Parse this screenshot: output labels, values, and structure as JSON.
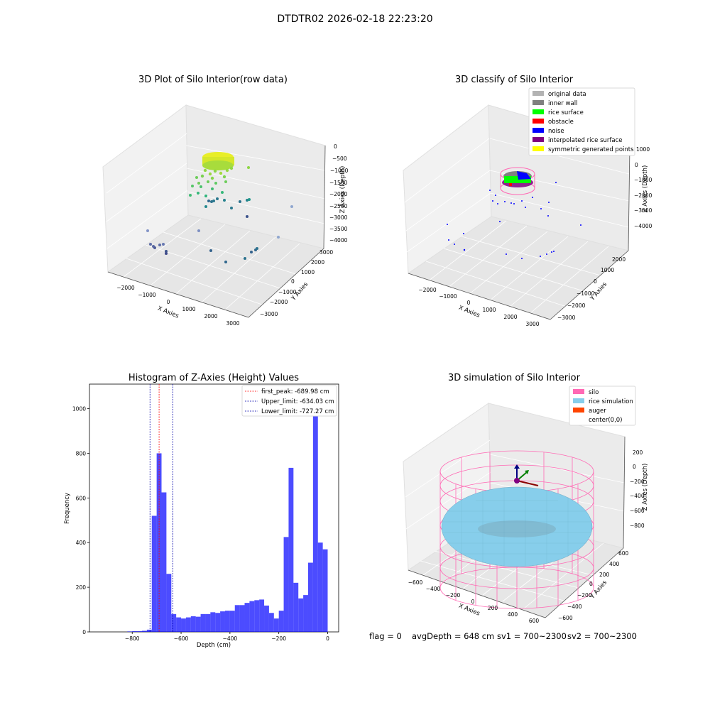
{
  "figure": {
    "suptitle": "DTDTR02 2026-02-18 22:23:20",
    "footer": {
      "flag": "flag = 0",
      "avg_depth": "avgDepth = 648 cm",
      "sv1": "sv1 = 700~2300",
      "sv2": "sv2 = 700~2300"
    }
  },
  "panels": {
    "raw": {
      "title": "3D Plot of Silo Interior(row data)",
      "xlabel": "X Axies",
      "ylabel": "Y Axies",
      "zlabel": "Z Axies (Depth)",
      "xticks": [
        "−2000",
        "−1000",
        "0",
        "1000",
        "2000",
        "3000"
      ],
      "yticks": [
        "3000",
        "2000",
        "1000",
        "0",
        "−1000",
        "−2000",
        "−3000"
      ],
      "zticks": [
        "0",
        "−500",
        "−1000",
        "−1500",
        "−2000",
        "−2500",
        "−3000",
        "−3500",
        "−4000"
      ]
    },
    "classify": {
      "title": "3D classify of Silo Interior",
      "xlabel": "X Axies",
      "ylabel": "Y Axies",
      "zlabel": "Z Axies (Depth)",
      "xticks": [
        "−2000",
        "−1000",
        "0",
        "1000",
        "2000",
        "3000"
      ],
      "yticks": [
        "2000",
        "1000",
        "0",
        "−1000",
        "−2000",
        "−3000"
      ],
      "zticks": [
        "1000",
        "0",
        "−1000",
        "−2000",
        "−3000",
        "−4000"
      ],
      "legend": [
        {
          "label": "original data",
          "color": "#b3b3b3"
        },
        {
          "label": "inner wall",
          "color": "#808080"
        },
        {
          "label": "rice surface",
          "color": "#00ff00"
        },
        {
          "label": "obstacle",
          "color": "#ff0000"
        },
        {
          "label": "noise",
          "color": "#0000ff"
        },
        {
          "label": "interpolated rice surface",
          "color": "#800080"
        },
        {
          "label": "symmetric generated points",
          "color": "#ffff00"
        }
      ]
    },
    "simulation": {
      "title": "3D simulation of Silo Interior",
      "xlabel": "X Axies",
      "ylabel": "Y Axies",
      "zlabel": "Z Axies (Depth)",
      "xticks": [
        "−600",
        "−400",
        "−200",
        "0",
        "200",
        "400",
        "600"
      ],
      "yticks": [
        "600",
        "400",
        "200",
        "0",
        "−200",
        "−400",
        "−600"
      ],
      "zticks": [
        "200",
        "0",
        "−200",
        "−400",
        "−600",
        "−800"
      ],
      "legend": [
        {
          "label": "silo",
          "color": "#ff69b4"
        },
        {
          "label": "rice simulation",
          "color": "#87ceeb"
        },
        {
          "label": "auger",
          "color": "#ff4500"
        },
        {
          "label": "center(0,0)",
          "color": ""
        }
      ]
    }
  },
  "chart_data": {
    "type": "bar",
    "title": "Histogram of Z-Axies (Height) Values",
    "xlabel": "Depth (cm)",
    "ylabel": "Frequency",
    "xlim": [
      -975,
      45
    ],
    "ylim": [
      0,
      1110
    ],
    "xticks": [
      -800,
      -600,
      -400,
      -200,
      0
    ],
    "yticks": [
      0,
      200,
      400,
      600,
      800,
      1000
    ],
    "bar_color": "#0000ff",
    "bin_width": 20,
    "bins": [
      {
        "x0": -820,
        "v": 2
      },
      {
        "x0": -800,
        "v": 3
      },
      {
        "x0": -780,
        "v": 3
      },
      {
        "x0": -760,
        "v": 5
      },
      {
        "x0": -740,
        "v": 10
      },
      {
        "x0": -720,
        "v": 520
      },
      {
        "x0": -700,
        "v": 800
      },
      {
        "x0": -680,
        "v": 625
      },
      {
        "x0": -660,
        "v": 260
      },
      {
        "x0": -640,
        "v": 80
      },
      {
        "x0": -620,
        "v": 65
      },
      {
        "x0": -600,
        "v": 60
      },
      {
        "x0": -580,
        "v": 65
      },
      {
        "x0": -560,
        "v": 70
      },
      {
        "x0": -540,
        "v": 68
      },
      {
        "x0": -520,
        "v": 80
      },
      {
        "x0": -500,
        "v": 80
      },
      {
        "x0": -480,
        "v": 88
      },
      {
        "x0": -460,
        "v": 85
      },
      {
        "x0": -440,
        "v": 92
      },
      {
        "x0": -420,
        "v": 95
      },
      {
        "x0": -400,
        "v": 95
      },
      {
        "x0": -380,
        "v": 120
      },
      {
        "x0": -360,
        "v": 120
      },
      {
        "x0": -340,
        "v": 130
      },
      {
        "x0": -320,
        "v": 138
      },
      {
        "x0": -300,
        "v": 142
      },
      {
        "x0": -280,
        "v": 145
      },
      {
        "x0": -260,
        "v": 118
      },
      {
        "x0": -240,
        "v": 85
      },
      {
        "x0": -220,
        "v": 60
      },
      {
        "x0": -200,
        "v": 95
      },
      {
        "x0": -180,
        "v": 425
      },
      {
        "x0": -160,
        "v": 735
      },
      {
        "x0": -140,
        "v": 220
      },
      {
        "x0": -120,
        "v": 150
      },
      {
        "x0": -100,
        "v": 165
      },
      {
        "x0": -80,
        "v": 310
      },
      {
        "x0": -60,
        "v": 1040
      },
      {
        "x0": -40,
        "v": 400
      },
      {
        "x0": -20,
        "v": 370
      }
    ],
    "vlines": [
      {
        "label": "first_peak: -689.98 cm",
        "x": -689.98,
        "color": "#ff0000"
      },
      {
        "label": "Upper_limit: -634.03 cm",
        "x": -634.03,
        "color": "#0000aa"
      },
      {
        "label": "Lower_limit: -727.27 cm",
        "x": -727.27,
        "color": "#0000aa"
      }
    ]
  }
}
